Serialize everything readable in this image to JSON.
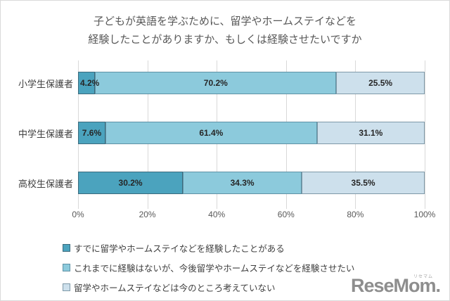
{
  "title": {
    "line1": "子どもが英語を学ぶために、留学やホームステイなどを",
    "line2": "経験したことがありますか、もしくは経験させたいですか"
  },
  "chart_data": {
    "type": "bar",
    "orientation": "horizontal",
    "stacked": true,
    "unit": "%",
    "categories": [
      "小学生保護者",
      "中学生保護者",
      "高校生保護者"
    ],
    "series": [
      {
        "name": "すでに留学やホームステイなどを経験したことがある",
        "color": "#4BA3BE",
        "border_color": "#3C6B7D",
        "values": [
          4.2,
          7.6,
          30.2
        ]
      },
      {
        "name": "これまでに経験はないが、今後留学やホームステイなどを経験させたい",
        "color": "#8CCADC",
        "border_color": "#5F92A5",
        "values": [
          70.2,
          61.4,
          34.3
        ]
      },
      {
        "name": "留学やホームステイなどは今のところ考えていない",
        "color": "#CDE0EC",
        "border_color": "#7F99A8",
        "values": [
          25.5,
          31.1,
          35.5
        ]
      }
    ],
    "x_ticks": [
      "0%",
      "20%",
      "40%",
      "60%",
      "80%",
      "100%"
    ],
    "xlim": [
      0,
      100
    ],
    "grid": true,
    "data_labels": true,
    "legend_position": "bottom-left"
  },
  "watermark": {
    "text": "ReseMom.",
    "ruby": "リセマム"
  },
  "colors": {
    "background": "#FFFFFF",
    "frame_border": "#D9D9D9",
    "gridline": "#D9D9D9",
    "title_text": "#595959",
    "axis_text": "#595959",
    "category_text": "#404040",
    "data_label_text": "#262626",
    "legend_text": "#404040",
    "logo_gray": "#8E8E8E"
  }
}
